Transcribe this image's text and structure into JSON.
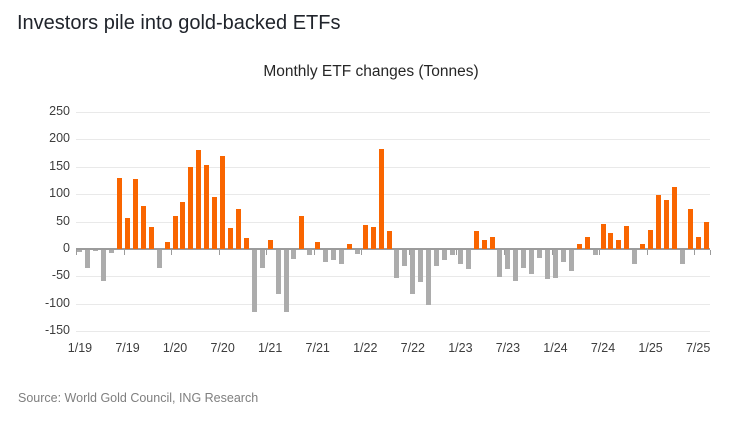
{
  "header": {
    "title": "Investors pile into gold-backed ETFs"
  },
  "footer": {
    "source": "Source: World Gold Council, ING Research"
  },
  "chart_data": {
    "type": "bar",
    "title": "Monthly ETF changes (Tonnes)",
    "ylabel": "Tonnes",
    "ylim": [
      -150,
      250
    ],
    "ytick_step": 50,
    "grid": true,
    "legend": "none",
    "x_tick_labels": [
      "1/19",
      "7/19",
      "1/20",
      "7/20",
      "1/21",
      "7/21",
      "1/22",
      "7/22",
      "1/23",
      "7/23",
      "1/24",
      "7/24",
      "1/25",
      "7/25"
    ],
    "x_tick_every": 6,
    "positive_color": "#F96500",
    "negative_color": "#ACACAC",
    "categories": [
      "1/19",
      "2/19",
      "3/19",
      "4/19",
      "5/19",
      "6/19",
      "7/19",
      "8/19",
      "9/19",
      "10/19",
      "11/19",
      "12/19",
      "1/20",
      "2/20",
      "3/20",
      "4/20",
      "5/20",
      "6/20",
      "7/20",
      "8/20",
      "9/20",
      "10/20",
      "11/20",
      "12/20",
      "1/21",
      "2/21",
      "3/21",
      "4/21",
      "5/21",
      "6/21",
      "7/21",
      "8/21",
      "9/21",
      "10/21",
      "11/21",
      "12/21",
      "1/22",
      "2/22",
      "3/22",
      "4/22",
      "5/22",
      "6/22",
      "7/22",
      "8/22",
      "9/22",
      "10/22",
      "11/22",
      "12/22",
      "1/23",
      "2/23",
      "3/23",
      "4/23",
      "5/23",
      "6/23",
      "7/23",
      "8/23",
      "9/23",
      "10/23",
      "11/23",
      "12/23",
      "1/24",
      "2/24",
      "3/24",
      "4/24",
      "5/24",
      "6/24",
      "7/24",
      "8/24",
      "9/24",
      "10/24",
      "11/24",
      "12/24",
      "1/25",
      "2/25",
      "3/25",
      "4/25",
      "5/25",
      "6/25",
      "7/25",
      "8/25"
    ],
    "values": [
      -3,
      -33,
      -2,
      -56,
      -5,
      130,
      57,
      127,
      78,
      40,
      -32,
      12,
      61,
      85,
      149,
      181,
      154,
      94,
      169,
      38,
      73,
      20,
      -113,
      -32,
      17,
      -80,
      -113,
      -16,
      60,
      -9,
      12,
      -22,
      -18,
      -26,
      10,
      -8,
      44,
      40,
      183,
      32,
      -52,
      -29,
      -80,
      -58,
      -100,
      -29,
      -18,
      -10,
      -26,
      -35,
      32,
      17,
      21,
      -50,
      -35,
      -56,
      -32,
      -44,
      -15,
      -53,
      -52,
      -21,
      -38,
      10,
      22,
      -10,
      46,
      29,
      17,
      42,
      -26,
      10,
      35,
      99,
      90,
      114,
      -26,
      73,
      22,
      50
    ]
  }
}
